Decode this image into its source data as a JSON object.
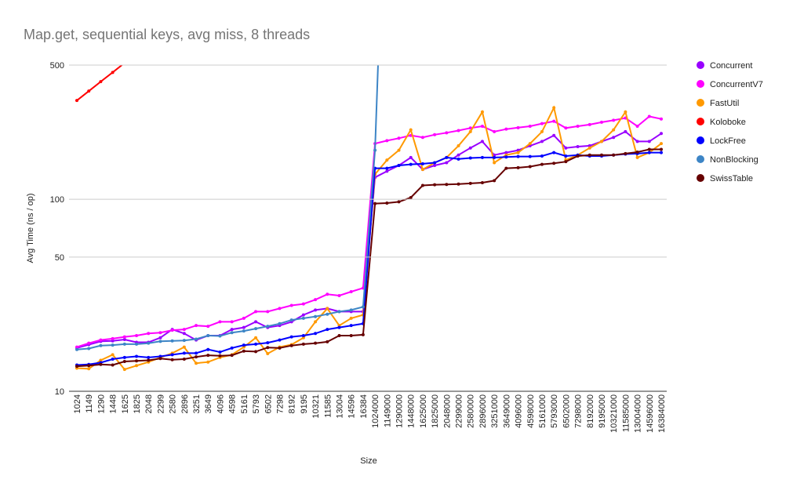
{
  "chart_data": {
    "type": "line",
    "title": "Map.get, sequential keys, avg miss, 8 threads",
    "x_label": "Size",
    "y_label": "Avg Time (ns / op)",
    "categories": [
      "1024",
      "1149",
      "1290",
      "1448",
      "1625",
      "1825",
      "2048",
      "2299",
      "2580",
      "2896",
      "3251",
      "3649",
      "4096",
      "4598",
      "5161",
      "5793",
      "6502",
      "7298",
      "8192",
      "9195",
      "10321",
      "11585",
      "13004",
      "14596",
      "16384",
      "1024000",
      "1149000",
      "1290000",
      "1448000",
      "1625000",
      "1825000",
      "2048000",
      "2299000",
      "2580000",
      "2896000",
      "3251000",
      "3649000",
      "4096000",
      "4598000",
      "5161000",
      "5793000",
      "6502000",
      "7298000",
      "8192000",
      "9195000",
      "10321000",
      "11585000",
      "13004000",
      "14596000",
      "16384000"
    ],
    "log_y": true,
    "grid": true,
    "legend": "right",
    "ylim": [
      10,
      500
    ],
    "yticks": [
      10,
      50,
      100,
      500
    ],
    "series": [
      {
        "name": "Concurrent",
        "color": "#9900ff",
        "values": [
          16.8,
          17.5,
          18.2,
          18.3,
          18.6,
          18,
          18,
          19,
          21,
          20,
          18.5,
          19.5,
          19.5,
          21,
          21.5,
          23,
          21.5,
          22,
          23,
          25,
          26.5,
          27,
          26,
          26,
          26,
          130,
          140,
          150,
          165,
          143,
          150,
          155,
          170,
          185,
          200,
          170,
          175,
          180,
          190,
          200,
          215,
          185,
          188,
          190,
          200,
          210,
          225,
          200,
          200,
          220
        ]
      },
      {
        "name": "ConcurrentV7",
        "color": "#ff00ff",
        "values": [
          17,
          17.8,
          18.5,
          18.8,
          19.2,
          19.5,
          20,
          20.2,
          20.8,
          21,
          22,
          21.8,
          23,
          23,
          24,
          26,
          26,
          27,
          28,
          28.5,
          30,
          32,
          31.5,
          33,
          34.5,
          195,
          202,
          208,
          215,
          210,
          217,
          222,
          228,
          235,
          240,
          225,
          232,
          236,
          240,
          248,
          255,
          235,
          240,
          245,
          252,
          258,
          265,
          240,
          270,
          262
        ]
      },
      {
        "name": "FastUtil",
        "color": "#ff9900",
        "values": [
          13.2,
          13.1,
          14.5,
          15.5,
          13,
          13.6,
          14.2,
          15,
          15.8,
          17,
          14,
          14.2,
          15,
          15.5,
          17,
          19,
          15.7,
          17,
          17.5,
          19,
          23,
          27,
          22,
          24,
          25,
          135,
          160,
          180,
          230,
          143,
          155,
          165,
          190,
          225,
          285,
          155,
          170,
          175,
          195,
          225,
          300,
          160,
          170,
          185,
          200,
          230,
          285,
          165,
          175,
          195
        ]
      },
      {
        "name": "Koloboke",
        "color": "#ff0000",
        "values": [
          327,
          366,
          410,
          458,
          513,
          null,
          null,
          null,
          null,
          null,
          null,
          null,
          null,
          null,
          null,
          null,
          null,
          null,
          null,
          null,
          null,
          null,
          null,
          null,
          null,
          null,
          null,
          null,
          null,
          null,
          null,
          null,
          null,
          null,
          null,
          null,
          null,
          null,
          null,
          null,
          null,
          null,
          null,
          null,
          null,
          null,
          null,
          null,
          null,
          null
        ]
      },
      {
        "name": "LockFree",
        "color": "#0000ff",
        "values": [
          13.7,
          13.8,
          14.1,
          14.7,
          15,
          15.2,
          15,
          15.2,
          15.5,
          15.8,
          15.8,
          16.5,
          16,
          16.8,
          17.4,
          17.6,
          17.9,
          18.5,
          19.2,
          19.5,
          20,
          21,
          21.5,
          22,
          22.5,
          145,
          145,
          150,
          152,
          153,
          155,
          165,
          162,
          164,
          165,
          165,
          166,
          167,
          167,
          168,
          175,
          168,
          170,
          168,
          168,
          170,
          172,
          173,
          175,
          175
        ]
      },
      {
        "name": "NonBlocking",
        "color": "#3d85c6",
        "values": [
          16.5,
          16.7,
          17.3,
          17.4,
          17.6,
          17.6,
          17.8,
          18.2,
          18.3,
          18.4,
          18.7,
          19.5,
          19.4,
          20.2,
          20.6,
          21.2,
          21.8,
          22.5,
          23.5,
          24,
          24.5,
          25.2,
          26,
          26.5,
          27.5,
          180,
          10000,
          null,
          null,
          null,
          null,
          null,
          null,
          null,
          null,
          null,
          null,
          null,
          null,
          null,
          null,
          null,
          null,
          null,
          null,
          null,
          null,
          null,
          null,
          null
        ]
      },
      {
        "name": "SwissTable",
        "color": "#660000",
        "values": [
          13.5,
          13.6,
          13.8,
          13.7,
          14.3,
          14.4,
          14.5,
          14.8,
          14.6,
          14.7,
          15.1,
          15.4,
          15.3,
          15.4,
          16.2,
          16.1,
          16.9,
          16.8,
          17.3,
          17.6,
          17.8,
          18.1,
          19.5,
          19.5,
          19.7,
          95,
          95.5,
          97,
          102,
          118,
          119,
          119.5,
          120,
          121,
          122,
          125,
          145,
          146,
          148,
          152,
          154,
          157,
          168,
          170,
          170,
          170,
          173,
          176,
          182,
          182
        ]
      }
    ]
  }
}
